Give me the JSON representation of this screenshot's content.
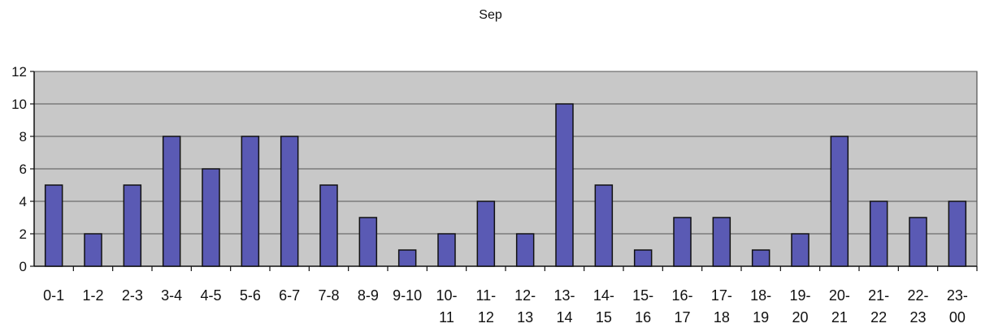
{
  "chart_data": {
    "type": "bar",
    "title": "Sep",
    "xlabel": "",
    "ylabel": "",
    "ylim": [
      0,
      12
    ],
    "yticks": [
      0,
      2,
      4,
      6,
      8,
      10,
      12
    ],
    "grid": true,
    "legend": "none",
    "colors": {
      "bar": "#5a5ab4",
      "bar_stroke": "#111111",
      "plot_bg": "#c8c8c8",
      "grid": "#555555"
    },
    "categories": [
      "0-1",
      "1-2",
      "2-3",
      "3-4",
      "4-5",
      "5-6",
      "6-7",
      "7-8",
      "8-9",
      "9-10",
      "10-11",
      "11-12",
      "12-13",
      "13-14",
      "14-15",
      "15-16",
      "16-17",
      "17-18",
      "18-19",
      "19-20",
      "20-21",
      "21-22",
      "22-23",
      "23-00"
    ],
    "category_label_lines": [
      [
        "0-1"
      ],
      [
        "1-2"
      ],
      [
        "2-3"
      ],
      [
        "3-4"
      ],
      [
        "4-5"
      ],
      [
        "5-6"
      ],
      [
        "6-7"
      ],
      [
        "7-8"
      ],
      [
        "8-9"
      ],
      [
        "9-10"
      ],
      [
        "10-",
        "11"
      ],
      [
        "11-",
        "12"
      ],
      [
        "12-",
        "13"
      ],
      [
        "13-",
        "14"
      ],
      [
        "14-",
        "15"
      ],
      [
        "15-",
        "16"
      ],
      [
        "16-",
        "17"
      ],
      [
        "17-",
        "18"
      ],
      [
        "18-",
        "19"
      ],
      [
        "19-",
        "20"
      ],
      [
        "20-",
        "21"
      ],
      [
        "21-",
        "22"
      ],
      [
        "22-",
        "23"
      ],
      [
        "23-",
        "00"
      ]
    ],
    "values": [
      5,
      2,
      5,
      8,
      6,
      8,
      8,
      5,
      3,
      1,
      2,
      4,
      2,
      10,
      5,
      1,
      3,
      3,
      1,
      2,
      8,
      4,
      3,
      4
    ]
  }
}
